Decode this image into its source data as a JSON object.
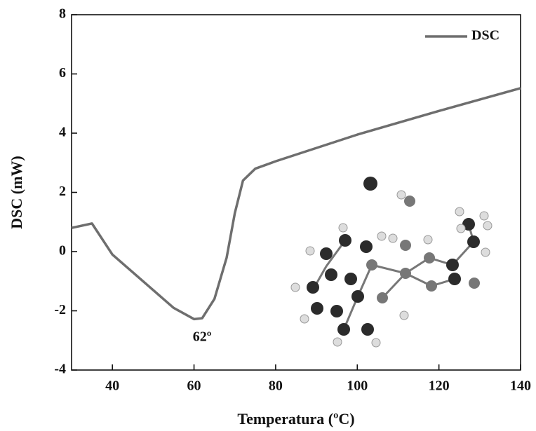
{
  "chart_data": {
    "type": "line",
    "x_label": "Temperatura (ºC)",
    "y_label": "DSC (mW)",
    "x": [
      30,
      35,
      40,
      45,
      50,
      55,
      60,
      62,
      65,
      68,
      70,
      72,
      75,
      80,
      100,
      120,
      140
    ],
    "series": [
      {
        "name": "DSC",
        "color": "#6e6e6e",
        "values": [
          0.8,
          0.95,
          -0.1,
          -0.7,
          -1.3,
          -1.9,
          -2.28,
          -2.25,
          -1.6,
          -0.2,
          1.3,
          2.4,
          2.8,
          3.05,
          3.95,
          4.75,
          5.52
        ]
      }
    ],
    "xlim": [
      30,
      140
    ],
    "xticks": [
      40,
      60,
      80,
      100,
      120,
      140
    ],
    "ylim": [
      -4,
      8
    ],
    "yticks": [
      -4,
      -2,
      0,
      2,
      4,
      6,
      8
    ],
    "annotation": "62º",
    "legend": "upper right",
    "grid": false
  }
}
